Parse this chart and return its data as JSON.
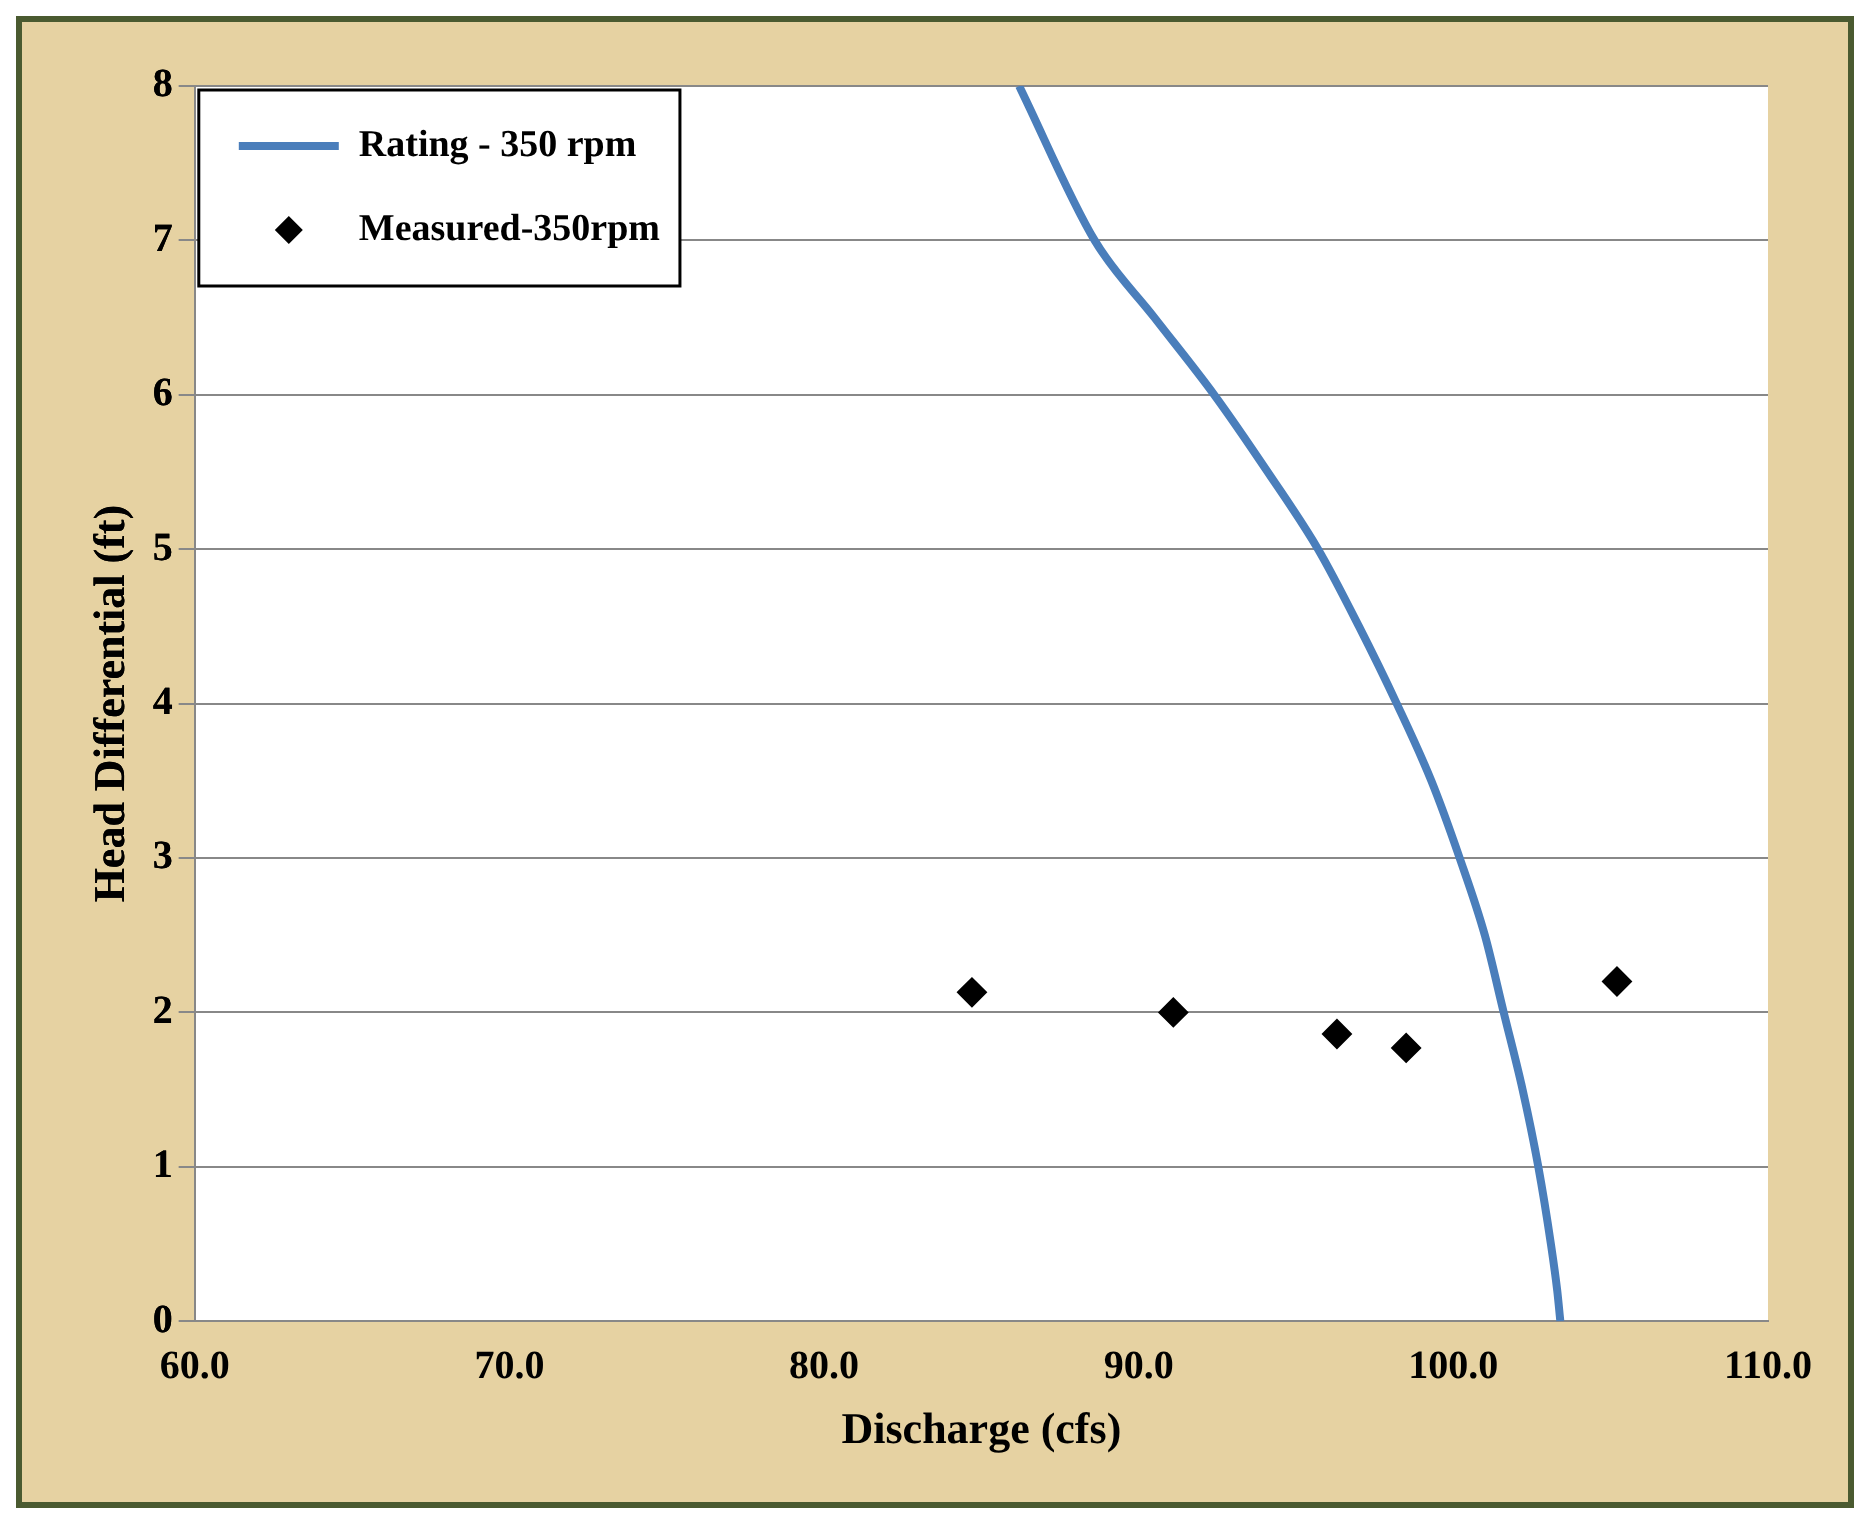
{
  "chart_data": {
    "type": "line",
    "xlabel": "Discharge (cfs)",
    "ylabel": "Head Differential (ft)",
    "xlim": [
      60,
      110
    ],
    "xticks": [
      {
        "value": 60,
        "label": "60.0"
      },
      {
        "value": 70,
        "label": "70.0"
      },
      {
        "value": 80,
        "label": "80.0"
      },
      {
        "value": 90,
        "label": "90.0"
      },
      {
        "value": 100,
        "label": "100.0"
      },
      {
        "value": 110,
        "label": "110.0"
      }
    ],
    "ylim": [
      0,
      8
    ],
    "yticks": [
      0,
      1,
      2,
      3,
      4,
      5,
      6,
      7,
      8
    ],
    "grid": "y",
    "legend": "top left",
    "series": [
      {
        "name": "Rating - 350 rpm",
        "color": "#4a7ebb",
        "marker": "none",
        "line_style": "solid",
        "x": [
          86.2,
          88.6,
          90.5,
          92.4,
          94.1,
          95.7,
          97.0,
          98.2,
          99.3,
          100.2,
          101.0,
          101.6,
          102.2,
          102.7,
          103.1,
          103.3,
          103.4
        ],
        "values": [
          8,
          7,
          6.5,
          6,
          5.5,
          5,
          4.5,
          4,
          3.5,
          3,
          2.5,
          2,
          1.5,
          1,
          0.5,
          0.2,
          0
        ]
      },
      {
        "name": "Measured-350rpm",
        "type": "scatter",
        "color": "#000000",
        "marker": "diamond",
        "x": [
          84.7,
          91.1,
          96.3,
          98.5,
          105.2
        ],
        "values": [
          2.13,
          2.0,
          1.86,
          1.77,
          2.2
        ]
      }
    ]
  }
}
